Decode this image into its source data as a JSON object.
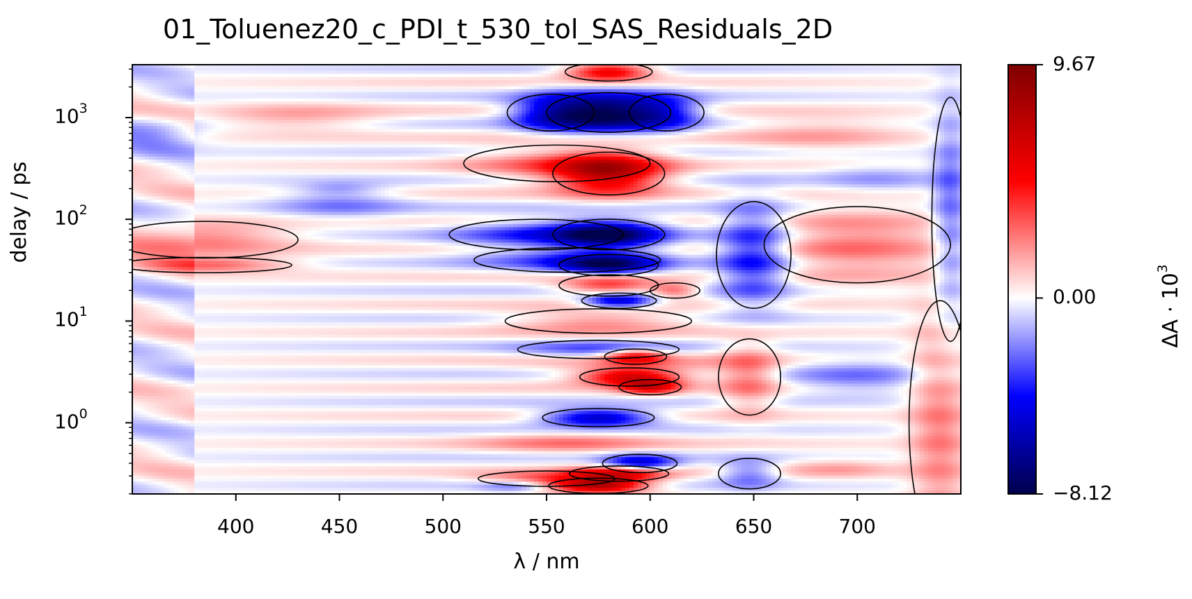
{
  "chart_data": {
    "type": "heatmap",
    "title": "01_Toluenez20_c_PDI_t_530_tol_SAS_Residuals_2D",
    "xlabel": "λ / nm",
    "ylabel": "delay / ps",
    "colorbar_label_base": "ΔA · 10",
    "colorbar_label_exp": "3",
    "xlim": [
      350,
      750
    ],
    "ylim_log10": [
      -0.7,
      3.52
    ],
    "y_scale": "log",
    "x_ticks": [
      {
        "value": 400,
        "label": "400"
      },
      {
        "value": 450,
        "label": "450"
      },
      {
        "value": 500,
        "label": "500"
      },
      {
        "value": 550,
        "label": "550"
      },
      {
        "value": 600,
        "label": "600"
      },
      {
        "value": 650,
        "label": "650"
      },
      {
        "value": 700,
        "label": "700"
      }
    ],
    "y_ticks": [
      {
        "exp": 0,
        "base": "10",
        "sup": "0"
      },
      {
        "exp": 1,
        "base": "10",
        "sup": "1"
      },
      {
        "exp": 2,
        "base": "10",
        "sup": "2"
      },
      {
        "exp": 3,
        "base": "10",
        "sup": "3"
      }
    ],
    "colorbar": {
      "min": -8.12,
      "max": 9.67,
      "ticks": [
        {
          "value": 9.67,
          "label": "9.67"
        },
        {
          "value": 0.0,
          "label": "0.00"
        },
        {
          "value": -8.12,
          "label": "−8.12"
        }
      ],
      "colormap": "seismic",
      "colors": [
        "#00004c",
        "#0000ff",
        "#ffffff",
        "#ff0000",
        "#7f0000"
      ]
    },
    "features": [
      {
        "x": 580,
        "ly": 3.45,
        "sx": 14,
        "sy": 0.06,
        "a": 6
      },
      {
        "x": 580,
        "ly": 3.05,
        "sx": 20,
        "sy": 0.13,
        "a": -8
      },
      {
        "x": 552,
        "ly": 3.05,
        "sx": 14,
        "sy": 0.12,
        "a": -4
      },
      {
        "x": 608,
        "ly": 3.05,
        "sx": 12,
        "sy": 0.12,
        "a": -3
      },
      {
        "x": 430,
        "ly": 3.0,
        "sx": 28,
        "sy": 0.1,
        "a": 1.6
      },
      {
        "x": 680,
        "ly": 2.85,
        "sx": 30,
        "sy": 0.13,
        "a": 1.5
      },
      {
        "x": 710,
        "ly": 2.4,
        "sx": 22,
        "sy": 0.1,
        "a": -1.4
      },
      {
        "x": 580,
        "ly": 2.45,
        "sx": 18,
        "sy": 0.14,
        "a": 7
      },
      {
        "x": 555,
        "ly": 2.55,
        "sx": 30,
        "sy": 0.12,
        "a": 2.5
      },
      {
        "x": 450,
        "ly": 2.15,
        "sx": 22,
        "sy": 0.1,
        "a": -1.8
      },
      {
        "x": 450,
        "ly": 2.3,
        "sx": 14,
        "sy": 0.05,
        "a": -1.3
      },
      {
        "x": 360,
        "ly": 2.85,
        "sx": 16,
        "sy": 0.12,
        "a": -1.5
      },
      {
        "x": 580,
        "ly": 1.85,
        "sx": 18,
        "sy": 0.1,
        "a": -7
      },
      {
        "x": 545,
        "ly": 1.85,
        "sx": 28,
        "sy": 0.1,
        "a": -3
      },
      {
        "x": 580,
        "ly": 1.55,
        "sx": 16,
        "sy": 0.07,
        "a": -6
      },
      {
        "x": 560,
        "ly": 1.6,
        "sx": 30,
        "sy": 0.08,
        "a": -2.5
      },
      {
        "x": 580,
        "ly": 1.35,
        "sx": 16,
        "sy": 0.07,
        "a": 4
      },
      {
        "x": 585,
        "ly": 1.2,
        "sx": 12,
        "sy": 0.05,
        "a": -6
      },
      {
        "x": 575,
        "ly": 1.0,
        "sx": 30,
        "sy": 0.08,
        "a": 2.5
      },
      {
        "x": 612,
        "ly": 1.3,
        "sx": 8,
        "sy": 0.05,
        "a": 3
      },
      {
        "x": 650,
        "ly": 1.65,
        "sx": 12,
        "sy": 0.35,
        "a": -4
      },
      {
        "x": 700,
        "ly": 1.75,
        "sx": 30,
        "sy": 0.25,
        "a": 2.5
      },
      {
        "x": 385,
        "ly": 1.8,
        "sx": 30,
        "sy": 0.12,
        "a": 2.5
      },
      {
        "x": 385,
        "ly": 1.55,
        "sx": 28,
        "sy": 0.05,
        "a": 3
      },
      {
        "x": 575,
        "ly": 0.72,
        "sx": 26,
        "sy": 0.06,
        "a": -2.5
      },
      {
        "x": 593,
        "ly": 0.65,
        "sx": 10,
        "sy": 0.05,
        "a": 5
      },
      {
        "x": 590,
        "ly": 0.45,
        "sx": 16,
        "sy": 0.06,
        "a": 6
      },
      {
        "x": 600,
        "ly": 0.35,
        "sx": 10,
        "sy": 0.05,
        "a": 5
      },
      {
        "x": 648,
        "ly": 0.45,
        "sx": 10,
        "sy": 0.25,
        "a": 2.5
      },
      {
        "x": 600,
        "ly": 0.55,
        "sx": 35,
        "sy": 0.1,
        "a": 1.5
      },
      {
        "x": 700,
        "ly": 0.45,
        "sx": 26,
        "sy": 0.12,
        "a": -2
      },
      {
        "x": 575,
        "ly": 0.05,
        "sx": 18,
        "sy": 0.06,
        "a": -6
      },
      {
        "x": 560,
        "ly": -0.2,
        "sx": 30,
        "sy": 0.07,
        "a": 2
      },
      {
        "x": 595,
        "ly": -0.4,
        "sx": 12,
        "sy": 0.06,
        "a": -5
      },
      {
        "x": 585,
        "ly": -0.5,
        "sx": 16,
        "sy": 0.05,
        "a": 6
      },
      {
        "x": 575,
        "ly": -0.62,
        "sx": 16,
        "sy": 0.05,
        "a": 8
      },
      {
        "x": 550,
        "ly": -0.55,
        "sx": 22,
        "sy": 0.05,
        "a": 3
      },
      {
        "x": 535,
        "ly": -0.62,
        "sx": 12,
        "sy": 0.04,
        "a": -2
      },
      {
        "x": 648,
        "ly": -0.5,
        "sx": 10,
        "sy": 0.1,
        "a": -2.5
      },
      {
        "x": 690,
        "ly": -0.45,
        "sx": 20,
        "sy": 0.07,
        "a": 1.5
      },
      {
        "x": 740,
        "ly": 0.0,
        "sx": 10,
        "sy": 0.8,
        "a": 2.5
      },
      {
        "x": 745,
        "ly": 2.0,
        "sx": 6,
        "sy": 0.8,
        "a": -2.5
      }
    ]
  }
}
